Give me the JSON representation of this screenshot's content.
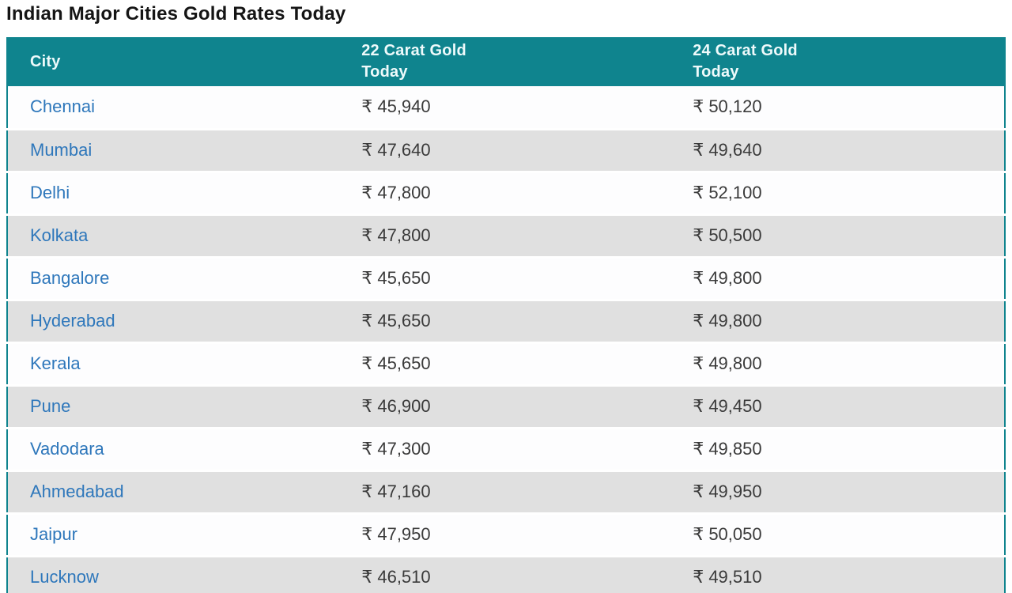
{
  "page_title": "Indian Major Cities Gold Rates Today",
  "table": {
    "columns": [
      "City",
      "22 Carat Gold\nToday",
      "24 Carat Gold\nToday"
    ],
    "rows": [
      {
        "city": "Chennai",
        "carat22": "₹ 45,940",
        "carat24": "₹ 50,120"
      },
      {
        "city": "Mumbai",
        "carat22": "₹ 47,640",
        "carat24": "₹ 49,640"
      },
      {
        "city": "Delhi",
        "carat22": "₹ 47,800",
        "carat24": "₹ 52,100"
      },
      {
        "city": "Kolkata",
        "carat22": "₹ 47,800",
        "carat24": "₹ 50,500"
      },
      {
        "city": "Bangalore",
        "carat22": "₹ 45,650",
        "carat24": "₹ 49,800"
      },
      {
        "city": "Hyderabad",
        "carat22": "₹ 45,650",
        "carat24": "₹ 49,800"
      },
      {
        "city": "Kerala",
        "carat22": "₹ 45,650",
        "carat24": "₹ 49,800"
      },
      {
        "city": "Pune",
        "carat22": "₹ 46,900",
        "carat24": "₹ 49,450"
      },
      {
        "city": "Vadodara",
        "carat22": "₹ 47,300",
        "carat24": "₹ 49,850"
      },
      {
        "city": "Ahmedabad",
        "carat22": "₹ 47,160",
        "carat24": "₹ 49,950"
      },
      {
        "city": "Jaipur",
        "carat22": "₹ 47,950",
        "carat24": "₹ 50,050"
      },
      {
        "city": "Lucknow",
        "carat22": "₹ 46,510",
        "carat24": "₹ 49,510"
      }
    ]
  },
  "colors": {
    "header_background": "#0f848e",
    "header_text": "#eefafb",
    "row_alt_background": "#e0e0e0",
    "city_link": "#2e77bb",
    "value_text": "#3a3a3a",
    "title_text": "#151515"
  }
}
